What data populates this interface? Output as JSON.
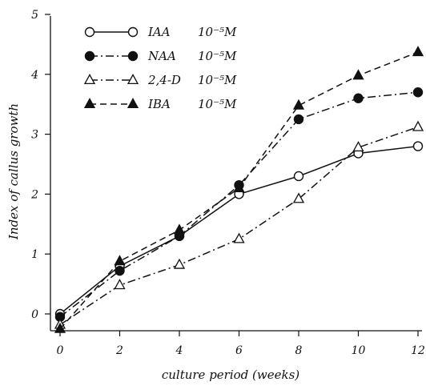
{
  "chart_data": {
    "type": "line",
    "title": "",
    "xlabel": "culture period  (weeks)",
    "ylabel": "Index of callus growth",
    "x": [
      0,
      2,
      4,
      6,
      8,
      10,
      12
    ],
    "xlim": [
      0,
      12
    ],
    "ylim": [
      0,
      5
    ],
    "xticks": [
      "0",
      "2",
      "4",
      "6",
      "8",
      "10",
      "12"
    ],
    "yticks": [
      "0",
      "1",
      "2",
      "3",
      "4",
      "5"
    ],
    "grid": false,
    "legend_position": "top-left",
    "series": [
      {
        "name": "IAA",
        "concentration": "10⁻⁵M",
        "marker": "open-circle",
        "line_style": "solid",
        "values": [
          0.0,
          0.8,
          1.3,
          2.0,
          2.3,
          2.68,
          2.8
        ]
      },
      {
        "name": "NAA",
        "concentration": "10⁻⁵M",
        "marker": "filled-circle",
        "line_style": "dash-dot",
        "values": [
          -0.05,
          0.72,
          1.3,
          2.15,
          3.25,
          3.6,
          3.7
        ]
      },
      {
        "name": "2,4-D",
        "concentration": "10⁻⁵M",
        "marker": "open-triangle",
        "line_style": "dash-dot",
        "values": [
          -0.18,
          0.48,
          0.82,
          1.25,
          1.92,
          2.78,
          3.12
        ]
      },
      {
        "name": "IBA",
        "concentration": "10⁻⁵M",
        "marker": "filled-triangle",
        "line_style": "dashed",
        "values": [
          -0.25,
          0.88,
          1.4,
          2.1,
          3.48,
          3.98,
          4.37
        ]
      }
    ]
  }
}
